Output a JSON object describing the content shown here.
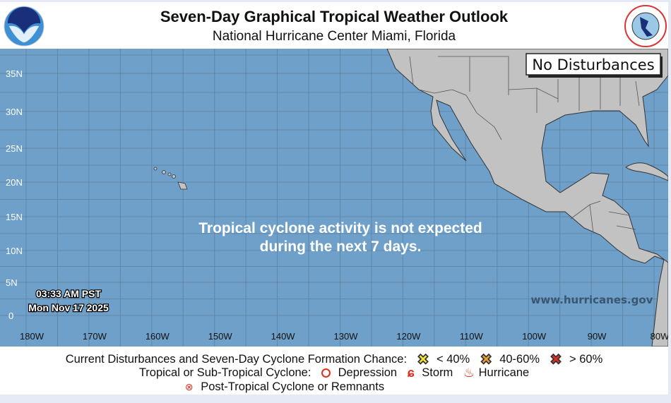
{
  "header": {
    "title": "Seven-Day Graphical Tropical Weather Outlook",
    "subtitle": "National Hurricane Center  Miami, Florida",
    "left_logo": "NOAA",
    "right_logo": "NATIONAL WEATHER SERVICE"
  },
  "map": {
    "status_box": "No Disturbances",
    "message_line1": "Tropical cyclone activity is not expected",
    "message_line2": "during the next 7 days.",
    "time": "03:33 AM PST",
    "date": "Mon Nov 17 2025",
    "website": "www.hurricanes.gov",
    "lat_labels": [
      "35N",
      "30N",
      "25N",
      "20N",
      "15N",
      "10N",
      "5N",
      "0"
    ],
    "lon_labels": [
      "180W",
      "170W",
      "160W",
      "150W",
      "140W",
      "130W",
      "120W",
      "110W",
      "100W",
      "90W",
      "80W"
    ],
    "colors": {
      "ocean": "#6fa0c9",
      "land": "#c2c2c2",
      "grid": "#5f87a8"
    }
  },
  "legend": {
    "row1_label": "Current Disturbances and Seven-Day Cyclone Formation Chance:",
    "low": "< 40%",
    "medium": "40-60%",
    "high": "> 60%",
    "row2_label": "Tropical or Sub-Tropical Cyclone:",
    "depression": "Depression",
    "storm": "Storm",
    "hurricane": "Hurricane",
    "post_tropical": "Post-Tropical Cyclone or Remnants",
    "colors": {
      "low": "#f5e83a",
      "medium": "#f0a030",
      "high": "#e03020",
      "cyclone": "#e0301e"
    }
  }
}
